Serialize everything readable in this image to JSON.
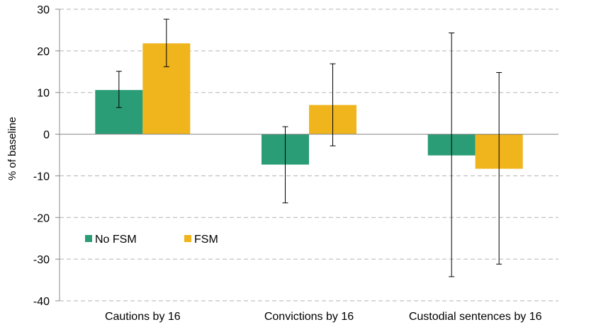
{
  "chart_data": {
    "type": "bar",
    "title": "",
    "xlabel": "",
    "ylabel": "% of baseline",
    "ylim": [
      -40,
      30
    ],
    "yticks": [
      30,
      20,
      10,
      0,
      -10,
      -20,
      -30,
      -40
    ],
    "grid": true,
    "legend_position": "lower-left",
    "categories": [
      "Cautions by 16",
      "Convictions by 16",
      "Custodial sentences by 16"
    ],
    "series": [
      {
        "name": "No FSM",
        "color": "#2a9d77",
        "values": [
          10.6,
          -7.3,
          -5.1
        ],
        "error_low": [
          6.4,
          -16.5,
          -34.2
        ],
        "error_high": [
          15.1,
          1.8,
          24.3
        ]
      },
      {
        "name": "FSM",
        "color": "#f0b41c",
        "values": [
          21.8,
          7.0,
          -8.3
        ],
        "error_low": [
          16.2,
          -2.8,
          -31.2
        ],
        "error_high": [
          27.6,
          16.9,
          14.8
        ]
      }
    ]
  }
}
